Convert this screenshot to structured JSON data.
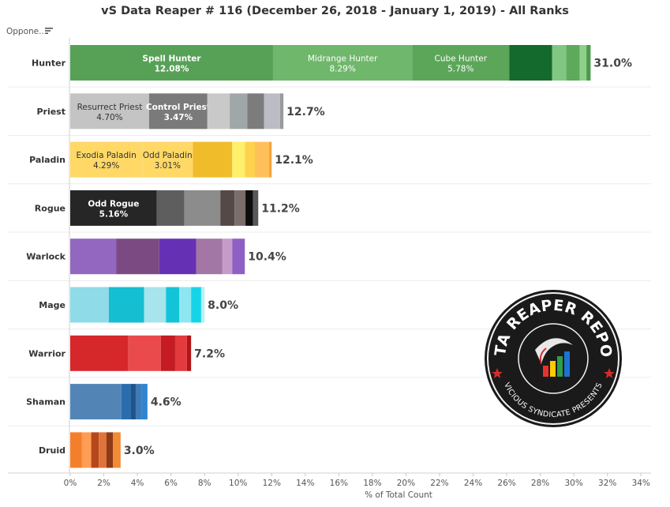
{
  "title": "vS Data Reaper # 116 (December 26, 2018 - January 1, 2019) - All Ranks",
  "opponent_header": "Oppone..",
  "icons": {
    "sort": "sort-descending-icon",
    "logo": "data-reaper-report-logo"
  },
  "logo": {
    "top_text": "DATA REAPER REPORT",
    "bottom_text": "VICIOUS SYNDICATE PRESENTS"
  },
  "chart_data": {
    "type": "bar",
    "orientation": "horizontal",
    "stacked": true,
    "xlabel": "% of Total Count",
    "xlim": [
      0,
      34.6
    ],
    "xticks": [
      0,
      2,
      4,
      6,
      8,
      10,
      12,
      14,
      16,
      18,
      20,
      22,
      24,
      26,
      28,
      30,
      32,
      34
    ],
    "tick_format": "{v}%",
    "grid": false,
    "categories": [
      {
        "name": "Hunter",
        "total": 31.0,
        "total_label": "31.0%",
        "segments": [
          {
            "label": "Spell Hunter",
            "value": 12.08,
            "value_label": "12.08%",
            "color": "#57a156"
          },
          {
            "label": "Midrange Hunter",
            "value": 8.29,
            "value_label": "8.29%",
            "color": "#6fb76b"
          },
          {
            "label": "Cube Hunter",
            "value": 5.78,
            "value_label": "5.78%",
            "color": "#5ca65a"
          },
          {
            "label": "",
            "value": 2.55,
            "color": "#146a2c"
          },
          {
            "label": "",
            "value": 0.85,
            "color": "#81c784"
          },
          {
            "label": "",
            "value": 0.8,
            "color": "#5fa95c"
          },
          {
            "label": "",
            "value": 0.4,
            "color": "#8fd08b"
          },
          {
            "label": "",
            "value": 0.25,
            "color": "#4e9a4c"
          }
        ]
      },
      {
        "name": "Priest",
        "total": 12.7,
        "total_label": "12.7%",
        "segments": [
          {
            "label": "Resurrect Priest",
            "value": 4.7,
            "value_label": "4.70%",
            "color": "#c4c4c4"
          },
          {
            "label": "Control Priest",
            "value": 3.47,
            "value_label": "3.47%",
            "color": "#7a7a7a"
          },
          {
            "label": "",
            "value": 1.33,
            "color": "#c9c9c9"
          },
          {
            "label": "",
            "value": 1.05,
            "color": "#a0a7a8"
          },
          {
            "label": "",
            "value": 1.0,
            "color": "#7c7c7c"
          },
          {
            "label": "",
            "value": 0.95,
            "color": "#bcbcc7"
          },
          {
            "label": "",
            "value": 0.2,
            "color": "#9a9a9a"
          }
        ]
      },
      {
        "name": "Paladin",
        "total": 12.1,
        "total_label": "12.1%",
        "segments": [
          {
            "label": "Exodia Paladin",
            "value": 4.29,
            "value_label": "4.29%",
            "color": "#ffd866"
          },
          {
            "label": "Odd Paladin",
            "value": 3.01,
            "value_label": "3.01%",
            "color": "#ffd866"
          },
          {
            "label": "",
            "value": 2.35,
            "color": "#f0bc2a"
          },
          {
            "label": "",
            "value": 0.75,
            "color": "#fff06a"
          },
          {
            "label": "",
            "value": 0.6,
            "color": "#ffd24d"
          },
          {
            "label": "",
            "value": 0.85,
            "color": "#ffc059"
          },
          {
            "label": "",
            "value": 0.15,
            "color": "#f4a33a"
          }
        ]
      },
      {
        "name": "Rogue",
        "total": 11.2,
        "total_label": "11.2%",
        "segments": [
          {
            "label": "Odd Rogue",
            "value": 5.16,
            "value_label": "5.16%",
            "color": "#262626"
          },
          {
            "label": "",
            "value": 1.63,
            "color": "#5e5e5e"
          },
          {
            "label": "",
            "value": 2.15,
            "color": "#8c8c8c"
          },
          {
            "label": "",
            "value": 0.85,
            "color": "#544946"
          },
          {
            "label": "",
            "value": 0.65,
            "color": "#7a6e6b"
          },
          {
            "label": "",
            "value": 0.45,
            "color": "#0d0d0d"
          },
          {
            "label": "",
            "value": 0.31,
            "color": "#575757"
          }
        ]
      },
      {
        "name": "Warlock",
        "total": 10.4,
        "total_label": "10.4%",
        "segments": [
          {
            "label": "",
            "value": 2.75,
            "color": "#9366c0"
          },
          {
            "label": "",
            "value": 2.55,
            "color": "#7b4a82"
          },
          {
            "label": "",
            "value": 2.2,
            "color": "#6630b5"
          },
          {
            "label": "",
            "value": 1.55,
            "color": "#a376a5"
          },
          {
            "label": "",
            "value": 0.6,
            "color": "#c49bc9"
          },
          {
            "label": "",
            "value": 0.75,
            "color": "#8f5fc4"
          }
        ]
      },
      {
        "name": "Mage",
        "total": 8.0,
        "total_label": "8.0%",
        "segments": [
          {
            "label": "",
            "value": 2.3,
            "color": "#8fdbe8"
          },
          {
            "label": "",
            "value": 2.1,
            "color": "#15bed0"
          },
          {
            "label": "",
            "value": 1.3,
            "color": "#a7e4ec"
          },
          {
            "label": "",
            "value": 0.8,
            "color": "#13c4d8"
          },
          {
            "label": "",
            "value": 0.7,
            "color": "#8de7f0"
          },
          {
            "label": "",
            "value": 0.6,
            "color": "#16d4e8"
          },
          {
            "label": "",
            "value": 0.2,
            "color": "#b8eef4"
          }
        ]
      },
      {
        "name": "Warrior",
        "total": 7.2,
        "total_label": "7.2%",
        "segments": [
          {
            "label": "",
            "value": 3.45,
            "color": "#d6272b"
          },
          {
            "label": "",
            "value": 1.95,
            "color": "#ea4a4c"
          },
          {
            "label": "",
            "value": 0.85,
            "color": "#c41c22"
          },
          {
            "label": "",
            "value": 0.7,
            "color": "#e33a3d"
          },
          {
            "label": "",
            "value": 0.25,
            "color": "#b01419"
          }
        ]
      },
      {
        "name": "Shaman",
        "total": 4.6,
        "total_label": "4.6%",
        "segments": [
          {
            "label": "",
            "value": 3.05,
            "color": "#5285b6"
          },
          {
            "label": "",
            "value": 0.55,
            "color": "#2a6dae"
          },
          {
            "label": "",
            "value": 0.3,
            "color": "#1e5588"
          },
          {
            "label": "",
            "value": 0.35,
            "color": "#3f7bb8"
          },
          {
            "label": "",
            "value": 0.35,
            "color": "#2e86d1"
          }
        ]
      },
      {
        "name": "Druid",
        "total": 3.0,
        "total_label": "3.0%",
        "segments": [
          {
            "label": "",
            "value": 0.7,
            "color": "#f47f2a"
          },
          {
            "label": "",
            "value": 0.55,
            "color": "#ff9d55"
          },
          {
            "label": "",
            "value": 0.45,
            "color": "#b5471b"
          },
          {
            "label": "",
            "value": 0.45,
            "color": "#e0733a"
          },
          {
            "label": "",
            "value": 0.4,
            "color": "#8f3a16"
          },
          {
            "label": "",
            "value": 0.45,
            "color": "#f08c35"
          }
        ]
      }
    ]
  }
}
